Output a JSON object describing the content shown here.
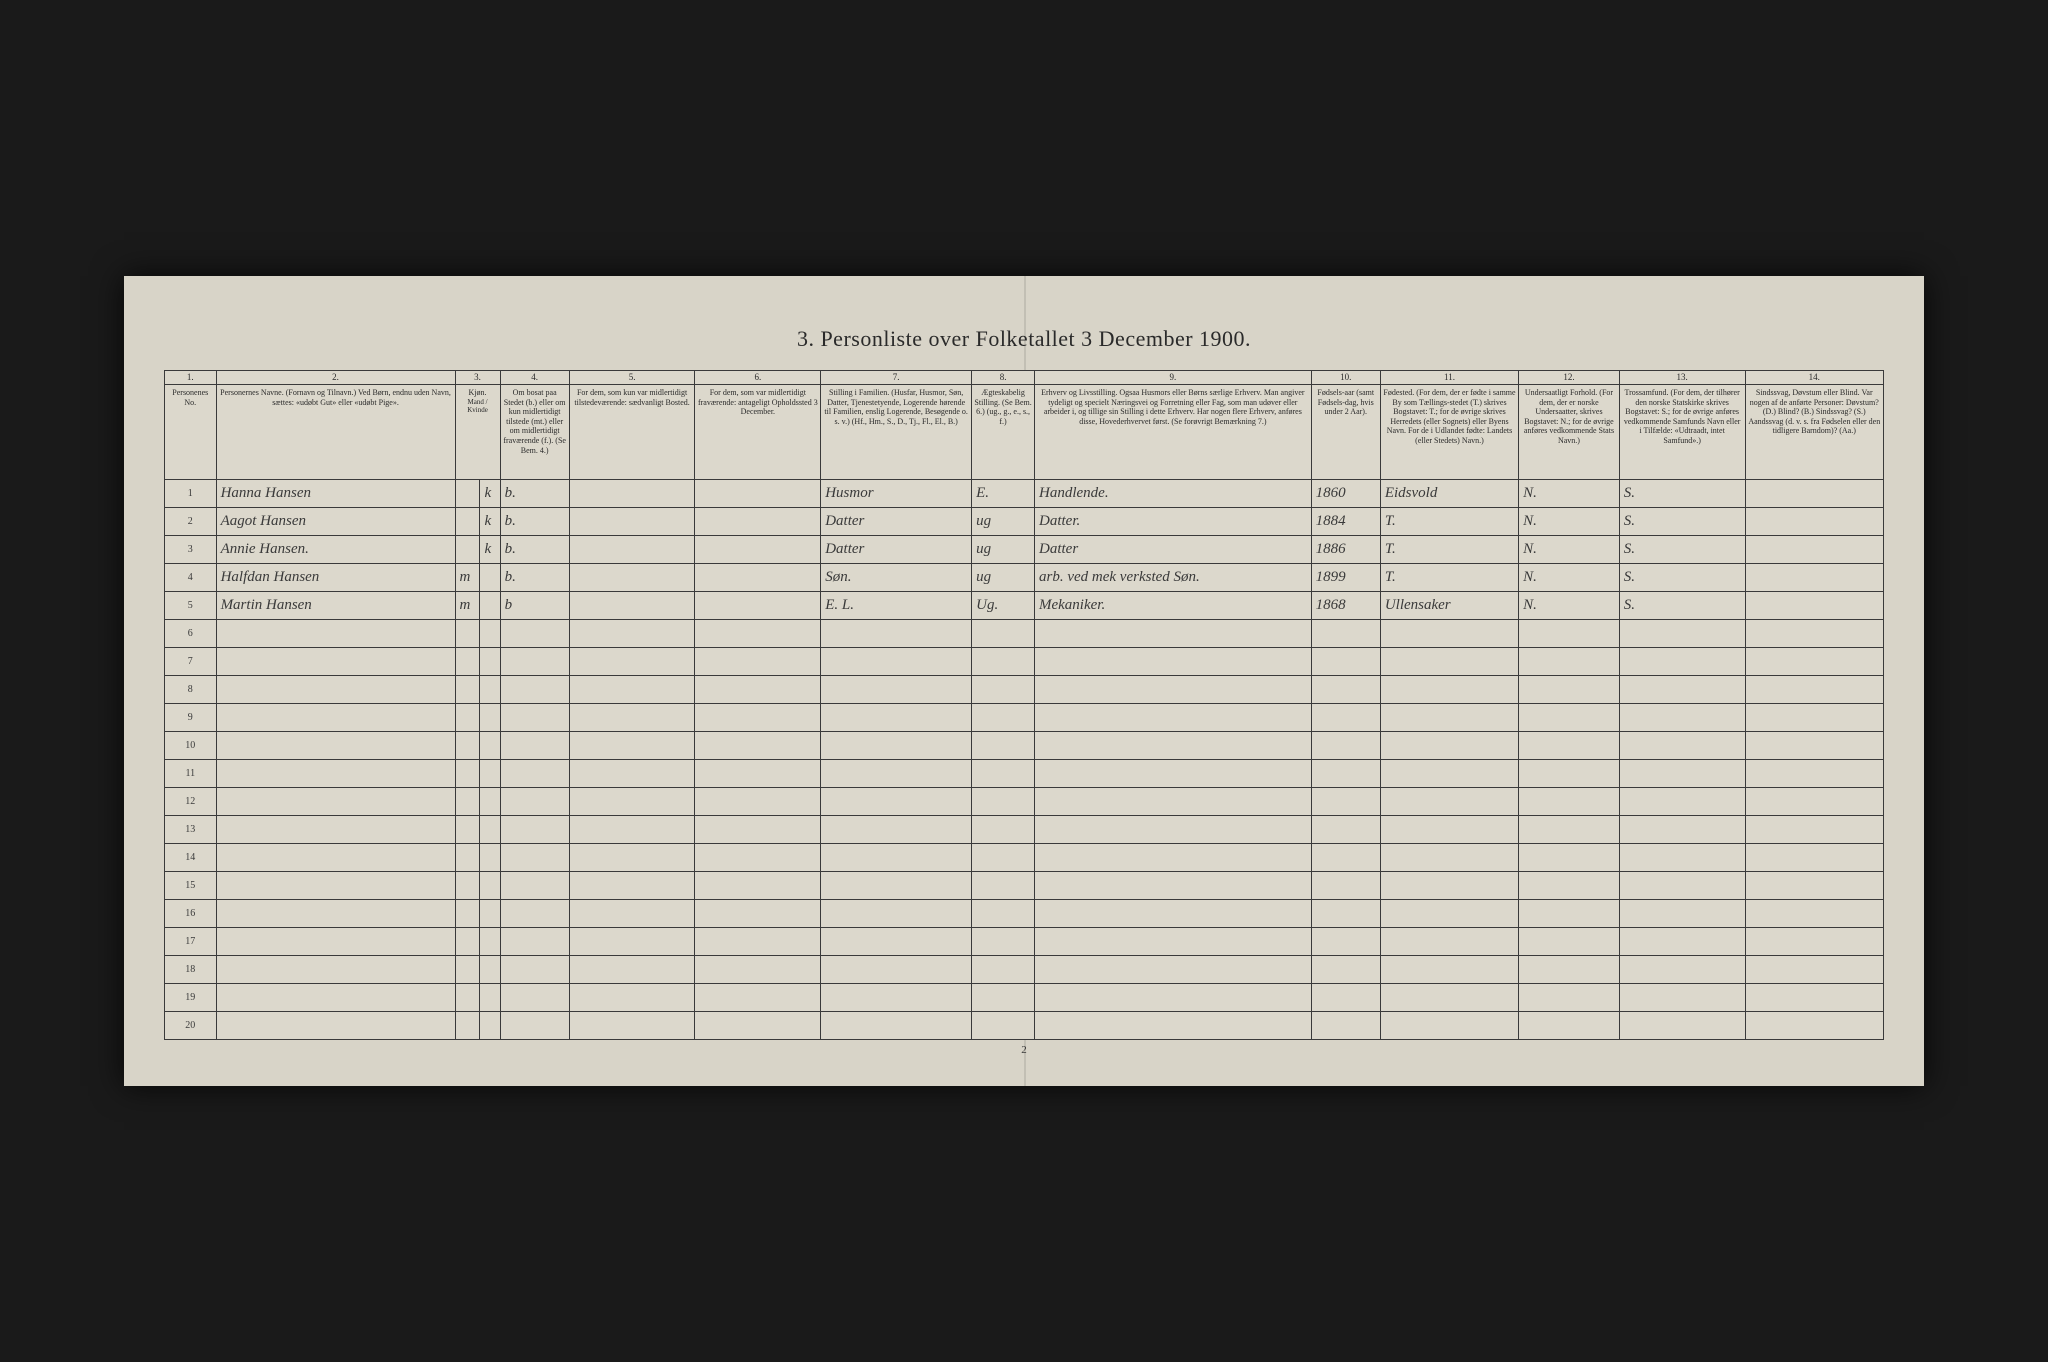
{
  "title": "3. Personliste over Folketallet 3 December 1900.",
  "page_number": "2",
  "column_numbers": [
    "1.",
    "2.",
    "3.",
    "4.",
    "5.",
    "6.",
    "7.",
    "8.",
    "9.",
    "10.",
    "11.",
    "12.",
    "13.",
    "14."
  ],
  "headers": {
    "c1": "Personenes No.",
    "c2": "Personernes Navne.\n(Fornavn og Tilnavn.)\nVed Børn, endnu uden Navn, sættes: «udøbt Gut» eller «udøbt Pige».",
    "c3": "Kjøn.",
    "c3_sub": "Mand / Kvinde",
    "c4": "Om bosat paa Stedet (b.) eller om kun midlertidigt tilstede (mt.) eller om midlertidigt fraværende (f.). (Se Bem. 4.)",
    "c5": "For dem, som kun var midlertidigt tilstedeværende:\nsædvanligt Bosted.",
    "c6": "For dem, som var midlertidigt fraværende:\nantageligt Opholdssted 3 December.",
    "c7": "Stilling i Familien.\n(Husfar, Husmor, Søn, Datter, Tjenestetyende, Logerende hørende til Familien, enslig Logerende, Besøgende o. s. v.)\n(Hf., Hm., S., D., Tj., Fl., El., B.)",
    "c8": "Ægteskabelig Stilling.\n(Se Bem. 6.)\n(ug., g., e., s., f.)",
    "c9": "Erhverv og Livsstilling.\nOgsaa Husmors eller Børns særlige Erhverv. Man angiver tydeligt og specielt Næringsvei og Forretning eller Fag, som man udøver eller arbeider i, og tillige sin Stilling i dette Erhverv. Har nogen flere Erhverv, anføres disse, Hovederhvervet først.\n(Se forøvrigt Bemærkning 7.)",
    "c10": "Fødsels-aar (samt Fødsels-dag, hvis under 2 Aar).",
    "c11": "Fødested.\n(For dem, der er fødte i samme By som Tællings-stedet (T.) skrives Bogstavet: T.; for de øvrige skrives Herredets (eller Sognets) eller Byens Navn. For de i Udlandet fødte: Landets (eller Stedets) Navn.)",
    "c12": "Undersaatligt Forhold.\n(For dem, der er norske Undersaatter, skrives Bogstavet: N.; for de øvrige anføres vedkommende Stats Navn.)",
    "c13": "Trossamfund.\n(For dem, der tilhører den norske Statskirke skrives Bogstavet: S.; for de øvrige anføres vedkommende Samfunds Navn eller i Tilfælde: «Udtraadt, intet Samfund».)",
    "c14": "Sindssvag, Døvstum eller Blind.\nVar nogen af de anførte Personer:\nDøvstum? (D.)\nBlind? (B.)\nSindssvag? (S.)\nAandssvag (d. v. s. fra Fødselen eller den tidligere Barndom)? (Aa.)"
  },
  "rows": [
    {
      "n": "1",
      "name": "Hanna Hansen",
      "sex_m": "",
      "sex_k": "k",
      "res": "b.",
      "c5": "",
      "c6": "",
      "fam": "Husmor",
      "civ": "E.",
      "occ": "Handlende.",
      "born": "1860",
      "place": "Eidsvold",
      "nat": "N.",
      "rel": "S.",
      "dis": ""
    },
    {
      "n": "2",
      "name": "Aagot Hansen",
      "sex_m": "",
      "sex_k": "k",
      "res": "b.",
      "c5": "",
      "c6": "",
      "fam": "Datter",
      "civ": "ug",
      "occ": "Datter.",
      "born": "1884",
      "place": "T.",
      "nat": "N.",
      "rel": "S.",
      "dis": ""
    },
    {
      "n": "3",
      "name": "Annie Hansen.",
      "sex_m": "",
      "sex_k": "k",
      "res": "b.",
      "c5": "",
      "c6": "",
      "fam": "Datter",
      "civ": "ug",
      "occ": "Datter",
      "born": "1886",
      "place": "T.",
      "nat": "N.",
      "rel": "S.",
      "dis": ""
    },
    {
      "n": "4",
      "name": "Halfdan Hansen",
      "sex_m": "m",
      "sex_k": "",
      "res": "b.",
      "c5": "",
      "c6": "",
      "fam": "Søn.",
      "civ": "ug",
      "occ": "arb. ved mek verksted Søn.",
      "born": "1899",
      "place": "T.",
      "nat": "N.",
      "rel": "S.",
      "dis": ""
    },
    {
      "n": "5",
      "name": "Martin Hansen",
      "sex_m": "m",
      "sex_k": "",
      "res": "b",
      "c5": "",
      "c6": "",
      "fam": "E. L.",
      "civ": "Ug.",
      "occ": "Mekaniker.",
      "born": "1868",
      "place": "Ullensaker",
      "nat": "N.",
      "rel": "S.",
      "dis": ""
    }
  ],
  "empty_row_labels": [
    "6",
    "7",
    "8",
    "9",
    "10",
    "11",
    "12",
    "13",
    "14",
    "15",
    "16",
    "17",
    "18",
    "19",
    "20"
  ],
  "colors": {
    "page_bg": "#d8d4c8",
    "border": "#3a3a3a",
    "text": "#2a2a2a",
    "outer_bg": "#1a1a1a"
  },
  "fonts": {
    "title_size_pt": 16,
    "header_size_pt": 6,
    "body_size_pt": 11
  }
}
